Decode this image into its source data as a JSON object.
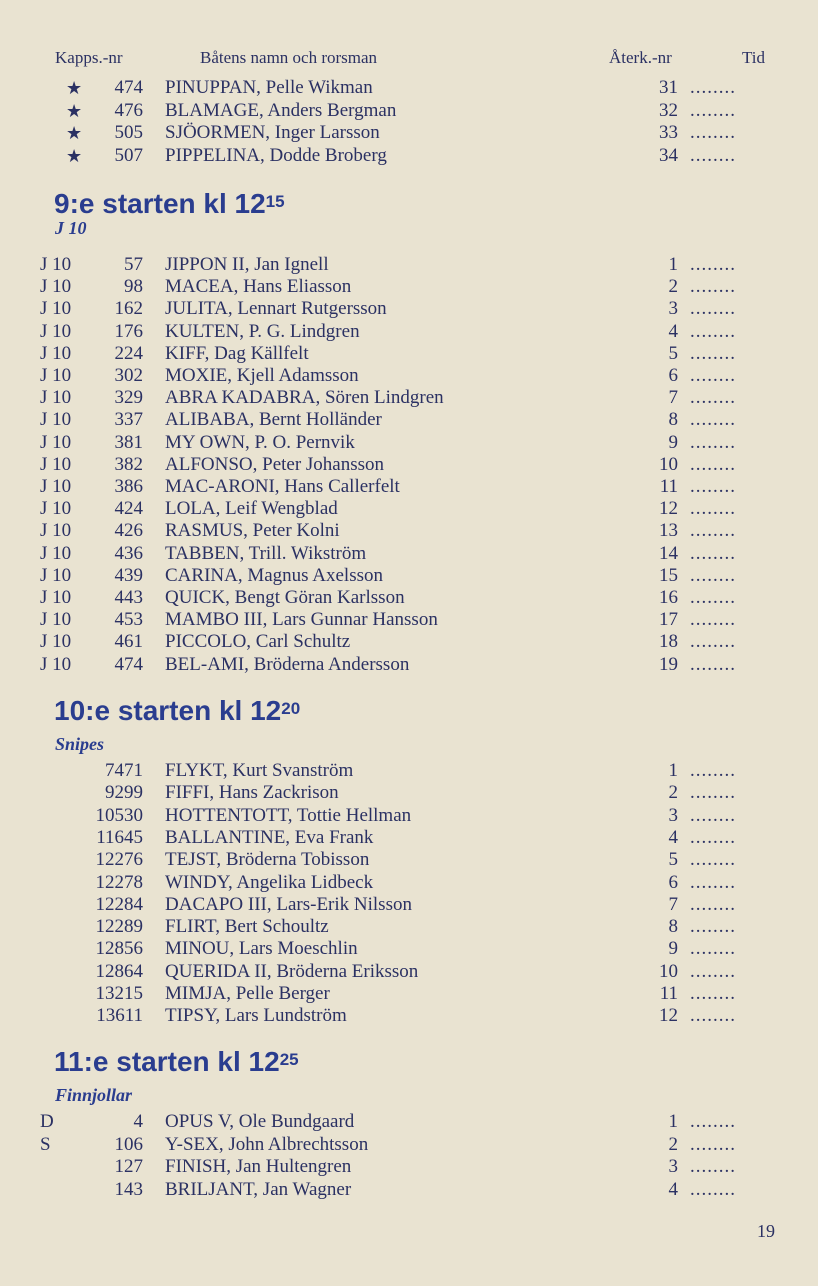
{
  "header": {
    "col1": "Kapps.-nr",
    "col2": "Båtens namn och rorsman",
    "col3": "Återk.-nr",
    "col4": "Tid"
  },
  "dots": "........",
  "top_rows": [
    {
      "mark": "★",
      "num": "474",
      "name": "PINUPPAN, Pelle Wikman",
      "ret": "31"
    },
    {
      "mark": "★",
      "num": "476",
      "name": "BLAMAGE, Anders Bergman",
      "ret": "32"
    },
    {
      "mark": "★",
      "num": "505",
      "name": "SJÖORMEN, Inger Larsson",
      "ret": "33"
    },
    {
      "mark": "★",
      "num": "507",
      "name": "PIPPELINA, Dodde Broberg",
      "ret": "34"
    }
  ],
  "sections": [
    {
      "title": "9:e starten kl 12",
      "time_sup": "15",
      "class": "J 10",
      "rows": [
        {
          "pre": "J 10",
          "num": "57",
          "name": "JIPPON II, Jan Ignell",
          "ret": "1"
        },
        {
          "pre": "J 10",
          "num": "98",
          "name": "MACEA, Hans Eliasson",
          "ret": "2"
        },
        {
          "pre": "J 10",
          "num": "162",
          "name": "JULITA, Lennart Rutgersson",
          "ret": "3"
        },
        {
          "pre": "J 10",
          "num": "176",
          "name": "KULTEN, P. G. Lindgren",
          "ret": "4"
        },
        {
          "pre": "J 10",
          "num": "224",
          "name": "KIFF, Dag Källfelt",
          "ret": "5"
        },
        {
          "pre": "J 10",
          "num": "302",
          "name": "MOXIE, Kjell Adamsson",
          "ret": "6"
        },
        {
          "pre": "J 10",
          "num": "329",
          "name": "ABRA KADABRA, Sören Lindgren",
          "ret": "7"
        },
        {
          "pre": "J 10",
          "num": "337",
          "name": "ALIBABA, Bernt Holländer",
          "ret": "8"
        },
        {
          "pre": "J 10",
          "num": "381",
          "name": "MY OWN, P. O. Pernvik",
          "ret": "9"
        },
        {
          "pre": "J 10",
          "num": "382",
          "name": "ALFONSO, Peter Johansson",
          "ret": "10"
        },
        {
          "pre": "J 10",
          "num": "386",
          "name": "MAC-ARONI, Hans Callerfelt",
          "ret": "11"
        },
        {
          "pre": "J 10",
          "num": "424",
          "name": "LOLA, Leif Wengblad",
          "ret": "12"
        },
        {
          "pre": "J 10",
          "num": "426",
          "name": "RASMUS, Peter Kolni",
          "ret": "13"
        },
        {
          "pre": "J 10",
          "num": "436",
          "name": "TABBEN, Trill. Wikström",
          "ret": "14"
        },
        {
          "pre": "J 10",
          "num": "439",
          "name": "CARINA, Magnus Axelsson",
          "ret": "15"
        },
        {
          "pre": "J 10",
          "num": "443",
          "name": "QUICK, Bengt Göran Karlsson",
          "ret": "16"
        },
        {
          "pre": "J 10",
          "num": "453",
          "name": "MAMBO III, Lars Gunnar Hansson",
          "ret": "17"
        },
        {
          "pre": "J 10",
          "num": "461",
          "name": "PICCOLO, Carl Schultz",
          "ret": "18"
        },
        {
          "pre": "J 10",
          "num": "474",
          "name": "BEL-AMI, Bröderna Andersson",
          "ret": "19"
        }
      ]
    },
    {
      "title": "10:e starten kl 12",
      "time_sup": "20",
      "class": "Snipes",
      "rows": [
        {
          "pre": "",
          "num": "7471",
          "name": "FLYKT, Kurt Svanström",
          "ret": "1"
        },
        {
          "pre": "",
          "num": "9299",
          "name": "FIFFI, Hans Zackrison",
          "ret": "2"
        },
        {
          "pre": "",
          "num": "10530",
          "name": "HOTTENTOTT, Tottie Hellman",
          "ret": "3"
        },
        {
          "pre": "",
          "num": "11645",
          "name": "BALLANTINE, Eva Frank",
          "ret": "4"
        },
        {
          "pre": "",
          "num": "12276",
          "name": "TEJST, Bröderna Tobisson",
          "ret": "5"
        },
        {
          "pre": "",
          "num": "12278",
          "name": "WINDY, Angelika Lidbeck",
          "ret": "6"
        },
        {
          "pre": "",
          "num": "12284",
          "name": "DACAPO III, Lars-Erik Nilsson",
          "ret": "7"
        },
        {
          "pre": "",
          "num": "12289",
          "name": "FLIRT, Bert Schoultz",
          "ret": "8"
        },
        {
          "pre": "",
          "num": "12856",
          "name": "MINOU, Lars Moeschlin",
          "ret": "9"
        },
        {
          "pre": "",
          "num": "12864",
          "name": "QUERIDA II, Bröderna Eriksson",
          "ret": "10"
        },
        {
          "pre": "",
          "num": "13215",
          "name": "MIMJA, Pelle Berger",
          "ret": "11"
        },
        {
          "pre": "",
          "num": "13611",
          "name": "TIPSY, Lars Lundström",
          "ret": "12"
        }
      ]
    },
    {
      "title": "11:e starten kl 12",
      "time_sup": "25",
      "class": "Finnjollar",
      "rows": [
        {
          "pre": "D",
          "num": "4",
          "name": "OPUS V, Ole Bundgaard",
          "ret": "1"
        },
        {
          "pre": "S",
          "num": "106",
          "name": "Y-SEX, John Albrechtsson",
          "ret": "2"
        },
        {
          "pre": "",
          "num": "127",
          "name": "FINISH, Jan Hultengren",
          "ret": "3"
        },
        {
          "pre": "",
          "num": "143",
          "name": "BRILJANT, Jan Wagner",
          "ret": "4"
        }
      ]
    }
  ],
  "page_number": "19"
}
